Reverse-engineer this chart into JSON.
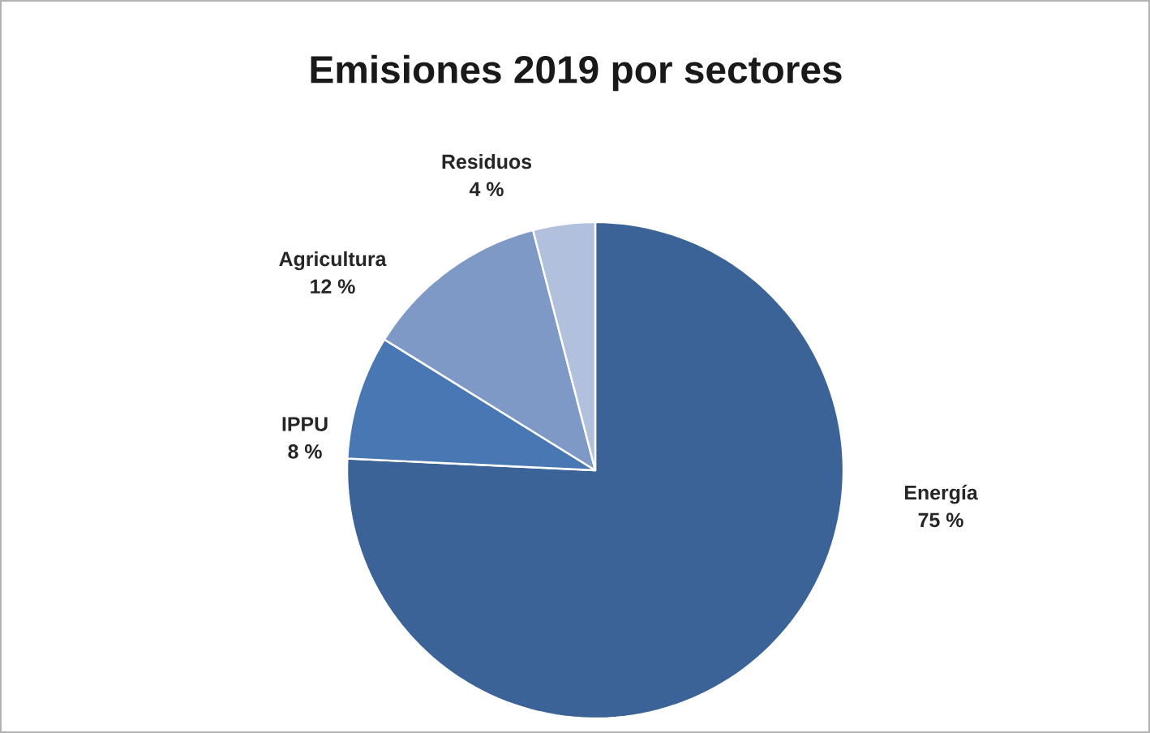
{
  "chart_data": {
    "type": "pie",
    "title": "Emisiones 2019 por sectores",
    "categories": [
      "Energía",
      "IPPU",
      "Agricultura",
      "Residuos"
    ],
    "values": [
      75,
      8,
      12,
      4
    ],
    "value_labels": [
      "75 %",
      "8 %",
      "12 %",
      "4 %"
    ],
    "colors": [
      "#3b6398",
      "#4877b3",
      "#7e99c6",
      "#b1c1dd"
    ],
    "legend": false
  }
}
